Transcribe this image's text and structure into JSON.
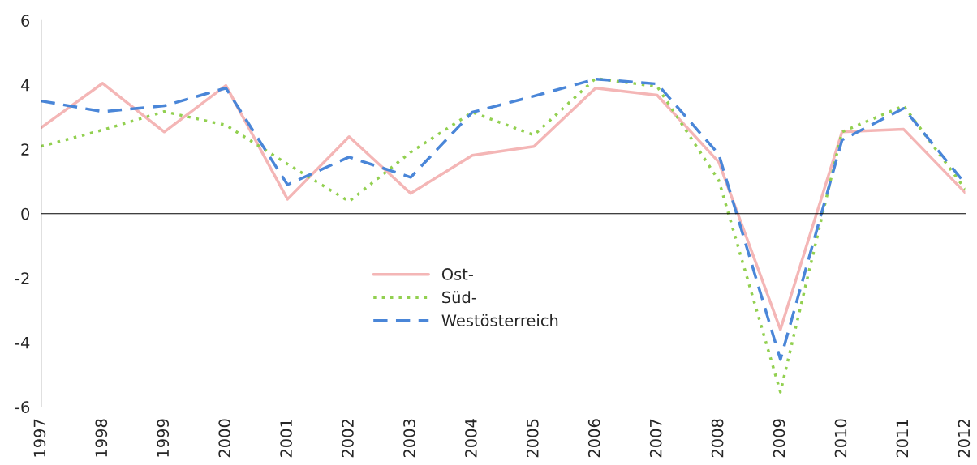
{
  "chart_data": {
    "type": "line",
    "categories": [
      "1997",
      "1998",
      "1999",
      "2000",
      "2001",
      "2002",
      "2003",
      "2004",
      "2005",
      "2006",
      "2007",
      "2008",
      "2009",
      "2010",
      "2011",
      "2012"
    ],
    "series": [
      {
        "name": "Ost-",
        "color": "#f4b6b6",
        "line_style": "solid",
        "values": [
          2.67,
          4.05,
          2.54,
          3.98,
          0.45,
          2.39,
          0.63,
          1.81,
          2.09,
          3.9,
          3.68,
          1.6,
          -3.6,
          2.54,
          2.62,
          0.65
        ]
      },
      {
        "name": "Süd-",
        "color": "#92d050",
        "line_style": "dotted",
        "values": [
          2.09,
          2.6,
          3.17,
          2.75,
          1.54,
          0.38,
          1.91,
          3.15,
          2.44,
          4.2,
          3.95,
          1.03,
          -5.54,
          2.54,
          3.35,
          0.76
        ]
      },
      {
        "name": "Westösterreich",
        "color": "#4a86d8",
        "line_style": "dashed",
        "values": [
          3.5,
          3.17,
          3.35,
          3.9,
          0.9,
          1.76,
          1.13,
          3.15,
          3.65,
          4.18,
          4.03,
          1.84,
          -4.53,
          2.29,
          3.27,
          0.93
        ]
      }
    ],
    "ylim": [
      -6,
      6
    ],
    "yticks": [
      -6,
      -4,
      -2,
      0,
      2,
      4,
      6
    ],
    "legend": "center",
    "marker": "none"
  }
}
